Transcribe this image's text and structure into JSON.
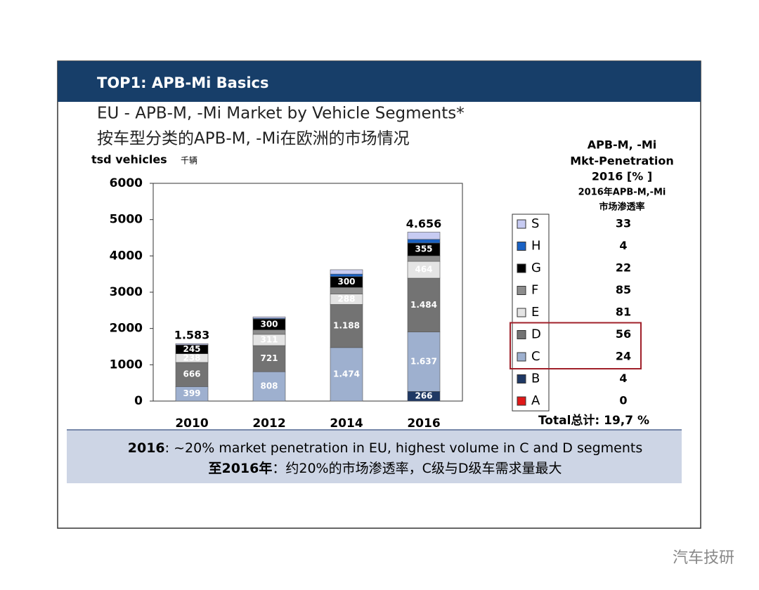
{
  "header": {
    "title": "TOP1: APB-Mi Basics"
  },
  "chart_data": {
    "type": "bar",
    "stacked": true,
    "title": "EU - APB-M, -Mi Market by Vehicle Segments*",
    "subtitle": "按车型分类的APB-M, -Mi在欧洲的市场情况",
    "y_label": "tsd vehicles",
    "y_label_cn": "千辆",
    "categories": [
      "2010",
      "2012",
      "2014",
      "2016"
    ],
    "ylim": [
      0,
      6000
    ],
    "yticks": [
      0,
      1000,
      2000,
      3000,
      4000,
      5000,
      6000
    ],
    "series": [
      {
        "name": "A",
        "color": "#e01818",
        "values": [
          0,
          0,
          0,
          0
        ],
        "value_labels": [
          null,
          null,
          null,
          null
        ]
      },
      {
        "name": "B",
        "color": "#1f3864",
        "values": [
          0,
          0,
          0,
          266
        ],
        "value_labels": [
          null,
          null,
          null,
          "266"
        ]
      },
      {
        "name": "C",
        "color": "#9eb0cf",
        "values": [
          399,
          808,
          1474,
          1637
        ],
        "value_labels": [
          "399",
          "808",
          "1.474",
          "1.637"
        ]
      },
      {
        "name": "D",
        "color": "#737373",
        "values": [
          666,
          721,
          1188,
          1484
        ],
        "value_labels": [
          "666",
          "721",
          "1.188",
          "1.484"
        ]
      },
      {
        "name": "E",
        "color": "#e4e4e4",
        "values": [
          238,
          311,
          288,
          464
        ],
        "value_labels": [
          "238",
          "311",
          "288",
          "464"
        ]
      },
      {
        "name": "F",
        "color": "#8c8c8c",
        "values": [
          0,
          120,
          180,
          150
        ],
        "value_labels": [
          null,
          null,
          null,
          null
        ]
      },
      {
        "name": "G",
        "color": "#000000",
        "values": [
          245,
          300,
          300,
          355
        ],
        "value_labels": [
          "245",
          "300",
          "300",
          "355"
        ]
      },
      {
        "name": "H",
        "color": "#1a62c4",
        "values": [
          0,
          20,
          70,
          100
        ],
        "value_labels": [
          null,
          null,
          null,
          null
        ]
      },
      {
        "name": "S",
        "color": "#c7cbf2",
        "values": [
          35,
          40,
          120,
          200
        ],
        "value_labels": [
          null,
          null,
          null,
          null
        ]
      }
    ],
    "totals": [
      {
        "index": 0,
        "value": 1583,
        "label": "1.583"
      },
      {
        "index": 3,
        "value": 4656,
        "label": "4.656"
      }
    ],
    "penetration_title": [
      "APB-M, -Mi",
      "Mkt-Penetration",
      "2016 [% ]",
      "2016年APB-M,-Mi",
      "市场渗透率"
    ],
    "penetration": [
      0,
      4,
      24,
      56,
      81,
      85,
      22,
      4,
      33
    ],
    "highlight": [
      "D",
      "C"
    ],
    "penetration_total": "Total总计: 19,7 %"
  },
  "footer": {
    "line1_bold": "2016",
    "line1": ": ~20% market penetration in EU, highest volume in C and D segments",
    "line2_bold": "至2016年",
    "line2": "：约20%的市场渗透率，C级与D级车需求量最大"
  },
  "watermark": "汽车技研"
}
